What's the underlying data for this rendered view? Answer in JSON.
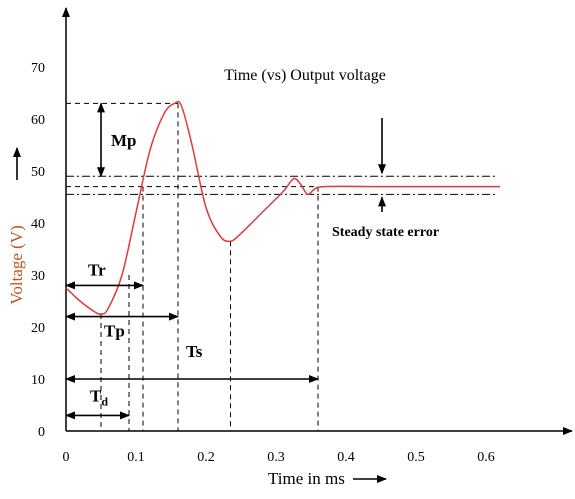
{
  "chart_data": {
    "type": "line",
    "title": "Time (vs) Output voltage",
    "xlabel": "Time in ms",
    "ylabel": "Voltage (V)",
    "xlim": [
      0,
      0.7
    ],
    "ylim": [
      0,
      72
    ],
    "x_ticks": [
      "0",
      "0.1",
      "0.2",
      "0.3",
      "0.4",
      "0.5",
      "0.6"
    ],
    "x_tick_values": [
      0,
      0.1,
      0.2,
      0.3,
      0.4,
      0.5,
      0.6
    ],
    "y_ticks": [
      "0",
      "10",
      "20",
      "30",
      "40",
      "50",
      "60",
      "70"
    ],
    "y_tick_values": [
      0,
      10,
      20,
      30,
      40,
      50,
      60,
      70
    ],
    "grid": false,
    "series": [
      {
        "color": "#e03a3a",
        "x": [
          0,
          0.02,
          0.04,
          0.05,
          0.06,
          0.08,
          0.1,
          0.12,
          0.14,
          0.155,
          0.165,
          0.18,
          0.2,
          0.22,
          0.235,
          0.25,
          0.28,
          0.31,
          0.325,
          0.335,
          0.345,
          0.355,
          0.37,
          0.45,
          0.55,
          0.62
        ],
        "y": [
          27.5,
          25,
          23,
          22.5,
          23.5,
          30,
          42,
          54,
          61,
          63,
          62.5,
          55,
          43,
          37.5,
          36.5,
          38,
          42,
          46,
          48.5,
          47.5,
          45.5,
          46.5,
          47,
          47,
          47,
          47
        ]
      }
    ],
    "reference_lines": {
      "peak": 63,
      "upper_band": 49,
      "steady_state": 47,
      "lower_band": 45.5
    },
    "annotations": [
      {
        "id": "mp",
        "label": "Mp",
        "kind": "vertical",
        "x": 0.05,
        "y_from": 63,
        "y_to": 49
      },
      {
        "id": "tr",
        "label": "Tr",
        "kind": "horizontal",
        "y": 28,
        "x_from": 0,
        "x_to": 0.11
      },
      {
        "id": "tp",
        "label": "Tp",
        "kind": "horizontal",
        "y": 22,
        "x_from": 0,
        "x_to": 0.16
      },
      {
        "id": "ts",
        "label": "Ts",
        "kind": "horizontal",
        "y": 10,
        "x_from": 0,
        "x_to": 0.36
      },
      {
        "id": "td",
        "label": "T",
        "sub": "d",
        "kind": "horizontal",
        "y": 3,
        "x_from": 0,
        "x_to": 0.09
      }
    ],
    "steady_state_error_label": "Steady state error",
    "vertical_markers": [
      0.05,
      0.09,
      0.11,
      0.16,
      0.235,
      0.36
    ]
  }
}
